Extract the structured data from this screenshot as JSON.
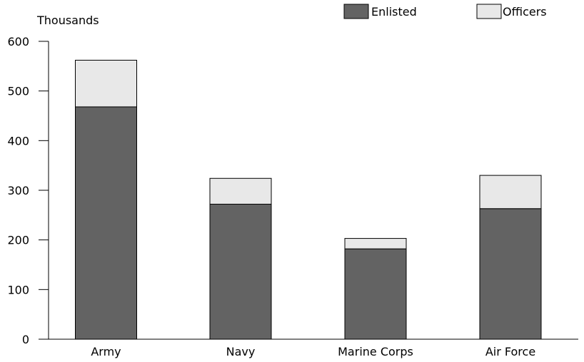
{
  "chart_data": {
    "type": "bar",
    "stacked": true,
    "title": "",
    "xlabel": "",
    "ylabel": "Thousands",
    "categories": [
      "Army",
      "Navy",
      "Marine Corps",
      "Air Force"
    ],
    "series": [
      {
        "name": "Enlisted",
        "values": [
          468,
          272,
          182,
          263
        ],
        "color": "#636363"
      },
      {
        "name": "Officers",
        "values": [
          94,
          52,
          21,
          67
        ],
        "color": "#e8e8e8"
      }
    ],
    "ylim": [
      0,
      600
    ],
    "yticks": [
      0,
      100,
      200,
      300,
      400,
      500,
      600
    ],
    "ytick_labels": [
      "0",
      "100",
      "200",
      "300",
      "400",
      "500",
      "600"
    ],
    "grid": false,
    "legend": "top-right"
  },
  "colors": {
    "enlisted": "#636363",
    "officers": "#e8e8e8",
    "outline": "#000000"
  }
}
